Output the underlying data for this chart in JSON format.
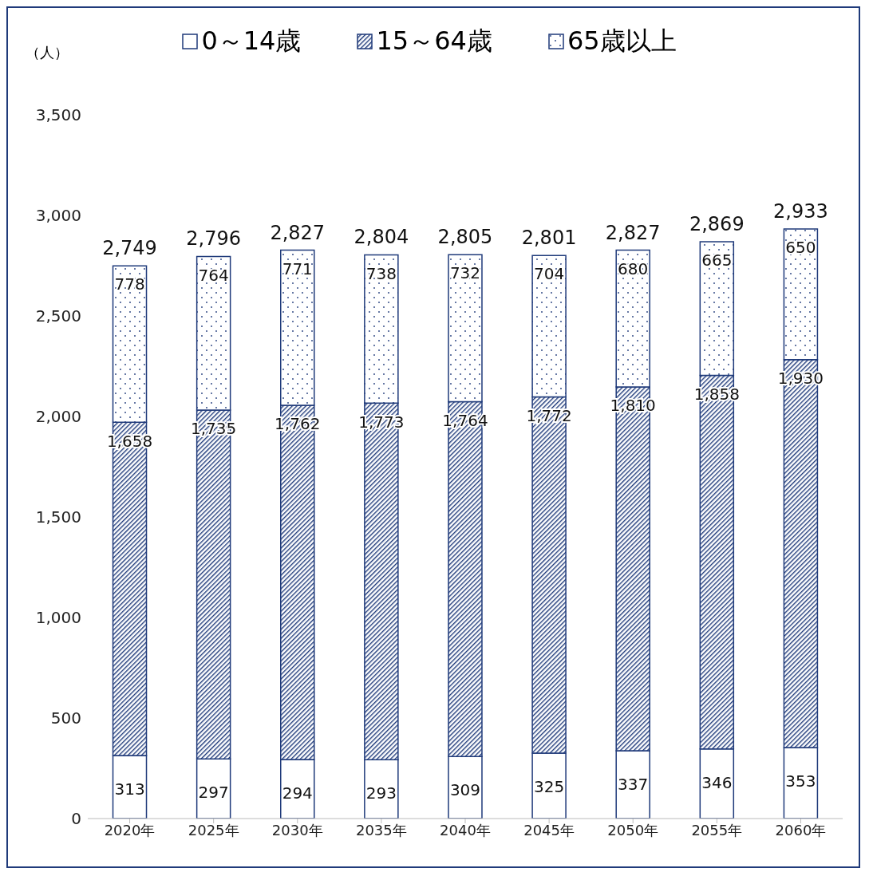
{
  "chart_data": {
    "type": "bar",
    "stacked": true,
    "ylabel": "（人）",
    "categories": [
      "2020年",
      "2025年",
      "2030年",
      "2035年",
      "2040年",
      "2045年",
      "2050年",
      "2055年",
      "2060年"
    ],
    "series": [
      {
        "name": "0～14歳",
        "color": "#1f3a7a",
        "values": [
          313,
          297,
          294,
          293,
          309,
          325,
          337,
          346,
          353
        ],
        "value_labels": [
          "313",
          "297",
          "294",
          "293",
          "309",
          "325",
          "337",
          "346",
          "353"
        ]
      },
      {
        "name": "15～64歳",
        "color": "#1f3a7a",
        "values": [
          1658,
          1735,
          1762,
          1773,
          1764,
          1772,
          1810,
          1858,
          1930
        ],
        "value_labels": [
          "1,658",
          "1,735",
          "1,762",
          "1,773",
          "1,764",
          "1,772",
          "1,810",
          "1,858",
          "1,930"
        ]
      },
      {
        "name": "65歳以上",
        "color": "#1f3a7a",
        "values": [
          778,
          764,
          771,
          738,
          732,
          704,
          680,
          665,
          650
        ],
        "value_labels": [
          "778",
          "764",
          "771",
          "738",
          "732",
          "704",
          "680",
          "665",
          "650"
        ]
      }
    ],
    "totals": [
      "2,749",
      "2,796",
      "2,827",
      "2,804",
      "2,805",
      "2,801",
      "2,827",
      "2,869",
      "2,933"
    ],
    "ylim": [
      0,
      3500
    ],
    "yticks": [
      0,
      500,
      {
        "value": 1000,
        "label": "1,000"
      },
      {
        "value": 1500,
        "label": "1,500"
      },
      {
        "value": 2000,
        "label": "2,000"
      },
      {
        "value": 2500,
        "label": "2,500"
      },
      {
        "value": 3000,
        "label": "3,000"
      },
      {
        "value": 3500,
        "label": "3,500"
      }
    ],
    "legend": "top",
    "grid": false
  }
}
